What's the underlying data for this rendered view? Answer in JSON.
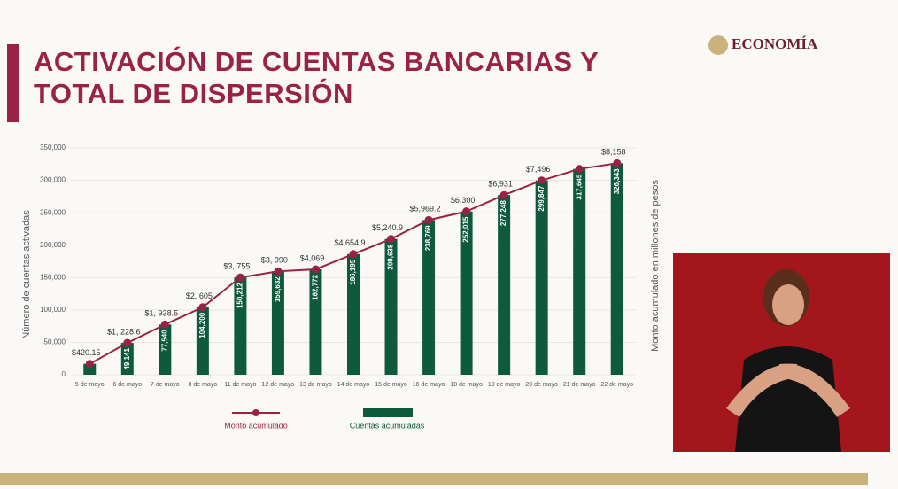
{
  "header": {
    "title": "ACTIVACIÓN DE CUENTAS BANCARIAS Y TOTAL DE DISPERSIÓN",
    "logo": "ECONOMÍA"
  },
  "chart_data": {
    "type": "bar",
    "categories": [
      "5 de mayo",
      "6 de mayo",
      "7 de mayo",
      "8 de mayo",
      "11 de mayo",
      "12 de mayo",
      "13 de mayo",
      "14 de mayo",
      "15 de mayo",
      "16 de mayo",
      "18 de mayo",
      "19 de mayo",
      "20 de mayo",
      "21 de mayo",
      "22 de mayo"
    ],
    "ylabel": "Número de cuentas activadas",
    "y2label": "Monto acumulado en millones de pesos",
    "ylim": [
      0,
      350000
    ],
    "yticks": [
      0,
      {
        "value": 50000,
        "label": "50,000"
      },
      {
        "value": 100000,
        "label": "100,000"
      },
      {
        "value": 150000,
        "label": "150,000"
      },
      {
        "value": 200000,
        "label": "200,000"
      },
      {
        "value": 250000,
        "label": "250,000"
      },
      {
        "value": 300000,
        "label": "300,000"
      },
      {
        "value": 350000,
        "label": "350,000"
      }
    ],
    "y2lim": [
      0,
      8750
    ],
    "grid": true,
    "series": [
      {
        "name": "Monto acumulado",
        "type": "line",
        "axis": "y2",
        "color": "#9b2247",
        "values": [
          420.15,
          1228.6,
          1938.5,
          2605,
          3755,
          3990,
          4069,
          4654.9,
          5240.9,
          5969.2,
          6300,
          6931,
          7496,
          7941,
          8158
        ],
        "value_labels": [
          "$420.15",
          "$1, 228.6",
          "$1, 938.5",
          "$2, 605",
          "$3, 755",
          "$3, 990",
          "$4,069",
          "$4,654.9",
          "$5,240.9",
          "$5,969.2",
          "$6,300",
          "$6,931",
          "$7,496",
          null,
          "$8,158"
        ]
      },
      {
        "name": "Cuentas acumuladas",
        "type": "bar",
        "color": "#0e5a3e",
        "values": [
          16806,
          49141,
          77540,
          104200,
          150212,
          159632,
          162772,
          186195,
          209638,
          238769,
          252015,
          277248,
          299847,
          317645,
          326343
        ],
        "value_labels": [
          null,
          "49,141",
          "77,540",
          "104,200",
          "150,212",
          "159,632",
          "162,772",
          "186,195",
          "209,638",
          "238,769",
          "252,015",
          "277,248",
          "299,847",
          "317,645",
          "326,343"
        ]
      }
    ]
  }
}
